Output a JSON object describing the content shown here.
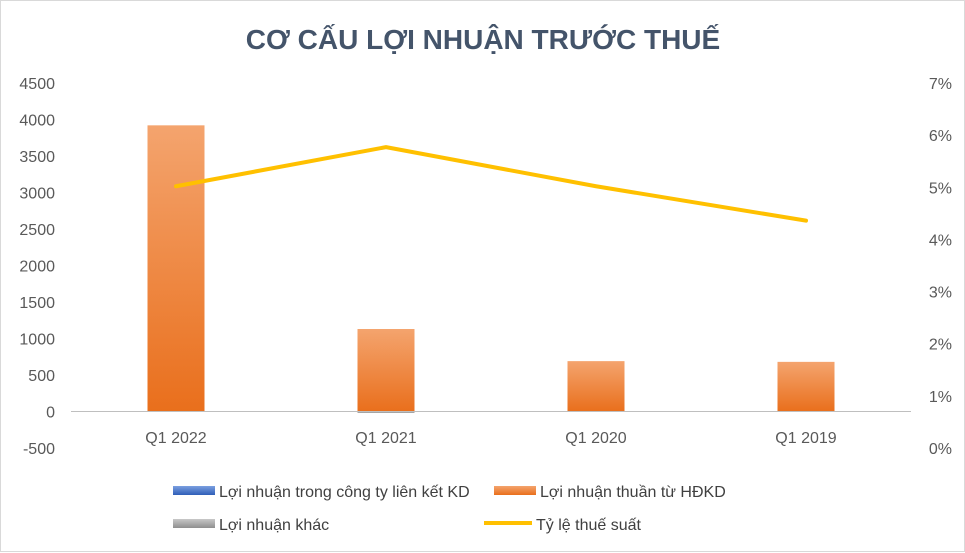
{
  "chart_data": {
    "type": "bar",
    "title": "CƠ CẤU LỢI NHUẬN TRƯỚC THUẾ",
    "categories": [
      "Q1 2022",
      "Q1 2021",
      "Q1 2020",
      "Q1 2019"
    ],
    "ylim": [
      -500,
      4500
    ],
    "y_ticks": [
      "4500",
      "4000",
      "3500",
      "3000",
      "2500",
      "2000",
      "1500",
      "1000",
      "500",
      "0",
      "-500"
    ],
    "y2lim": [
      0,
      0.07
    ],
    "y2_ticks": [
      "7%",
      "6%",
      "5%",
      "4%",
      "3%",
      "2%",
      "1%",
      "0%"
    ],
    "grid": false,
    "legend_position": "bottom",
    "series": [
      {
        "name": "Lợi nhuận trong công ty liên kết KD",
        "kind": "bar",
        "axis": "left",
        "color": "#4472c4",
        "values": [
          0,
          0,
          0,
          0
        ]
      },
      {
        "name": "Lợi nhuận thuần từ HĐKD",
        "kind": "bar",
        "axis": "left",
        "color": "#ed7d31",
        "values": [
          3920,
          1130,
          690,
          680
        ]
      },
      {
        "name": "Lợi nhuận khác",
        "kind": "bar",
        "axis": "left",
        "color": "#a5a5a5",
        "values": [
          0,
          -20,
          0,
          0
        ]
      },
      {
        "name": "Tỷ lệ thuế suất",
        "kind": "line",
        "axis": "right",
        "color": "#ffc000",
        "values": [
          0.0502,
          0.0577,
          0.0502,
          0.0436
        ]
      }
    ]
  }
}
